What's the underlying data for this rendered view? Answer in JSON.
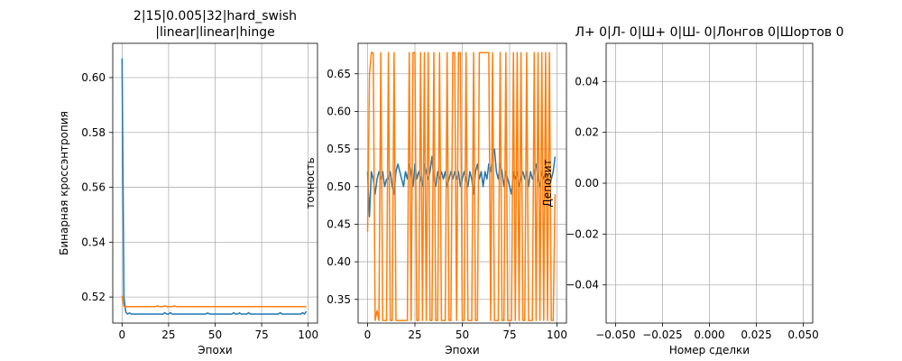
{
  "chart_data": [
    {
      "type": "line",
      "title": [
        "2|15|0.005|32|hard_swish",
        "|linear|linear|hinge"
      ],
      "xlabel": "Эпохи",
      "ylabel": "Бинарная кроссэнтропия",
      "xlim": [
        -5,
        105
      ],
      "ylim": [
        0.5105,
        0.6125
      ],
      "xticks": [
        0,
        25,
        50,
        75,
        100
      ],
      "yticks": [
        0.52,
        0.54,
        0.56,
        0.58,
        0.6
      ],
      "ytick_labels": [
        "0.52",
        "0.54",
        "0.56",
        "0.58",
        "0.60"
      ],
      "grid": true,
      "series": [
        {
          "color": "#1f77b4",
          "x": [
            0,
            1,
            2,
            3,
            4,
            5,
            6,
            7,
            8,
            9,
            10,
            11,
            12,
            13,
            14,
            15,
            16,
            17,
            18,
            19,
            20,
            21,
            22,
            23,
            24,
            25,
            26,
            27,
            28,
            29,
            30,
            31,
            32,
            33,
            34,
            35,
            36,
            37,
            38,
            39,
            40,
            41,
            42,
            43,
            44,
            45,
            46,
            47,
            48,
            49,
            50,
            51,
            52,
            53,
            54,
            55,
            56,
            57,
            58,
            59,
            60,
            61,
            62,
            63,
            64,
            65,
            66,
            67,
            68,
            69,
            70,
            71,
            72,
            73,
            74,
            75,
            76,
            77,
            78,
            79,
            80,
            81,
            82,
            83,
            84,
            85,
            86,
            87,
            88,
            89,
            90,
            91,
            92,
            93,
            94,
            95,
            96,
            97,
            98,
            99
          ],
          "y": [
            0.607,
            0.52,
            0.5145,
            0.5138,
            0.5142,
            0.5138,
            0.5138,
            0.5138,
            0.5138,
            0.5138,
            0.5138,
            0.5138,
            0.5138,
            0.5138,
            0.5138,
            0.5138,
            0.5138,
            0.5138,
            0.5138,
            0.5138,
            0.5138,
            0.5138,
            0.5138,
            0.5143,
            0.5138,
            0.5138,
            0.5143,
            0.5138,
            0.5138,
            0.5138,
            0.5138,
            0.5138,
            0.5138,
            0.5138,
            0.5138,
            0.5138,
            0.5138,
            0.5138,
            0.5138,
            0.5138,
            0.5138,
            0.5138,
            0.5138,
            0.5138,
            0.5138,
            0.5138,
            0.5142,
            0.5138,
            0.5138,
            0.5138,
            0.5138,
            0.5138,
            0.5138,
            0.5138,
            0.5138,
            0.5138,
            0.5138,
            0.5138,
            0.5138,
            0.5138,
            0.5143,
            0.5138,
            0.5138,
            0.5142,
            0.5138,
            0.5138,
            0.5138,
            0.5138,
            0.5143,
            0.5138,
            0.5138,
            0.5138,
            0.5138,
            0.5138,
            0.5138,
            0.5138,
            0.5138,
            0.5138,
            0.5138,
            0.5138,
            0.5138,
            0.5138,
            0.5138,
            0.5138,
            0.5138,
            0.5143,
            0.5138,
            0.5138,
            0.5138,
            0.5138,
            0.5138,
            0.5138,
            0.5138,
            0.5138,
            0.5138,
            0.5138,
            0.5138,
            0.5143,
            0.5138,
            0.5148
          ]
        },
        {
          "color": "#ff7f0e",
          "x": [
            0,
            1,
            2,
            3,
            4,
            5,
            6,
            7,
            8,
            9,
            10,
            11,
            12,
            13,
            14,
            15,
            16,
            17,
            18,
            19,
            20,
            21,
            22,
            23,
            24,
            25,
            26,
            27,
            28,
            29,
            30,
            31,
            32,
            33,
            34,
            35,
            36,
            37,
            38,
            39,
            40,
            41,
            42,
            43,
            44,
            45,
            46,
            47,
            48,
            49,
            50,
            51,
            52,
            53,
            54,
            55,
            56,
            57,
            58,
            59,
            60,
            61,
            62,
            63,
            64,
            65,
            66,
            67,
            68,
            69,
            70,
            71,
            72,
            73,
            74,
            75,
            76,
            77,
            78,
            79,
            80,
            81,
            82,
            83,
            84,
            85,
            86,
            87,
            88,
            89,
            90,
            91,
            92,
            93,
            94,
            95,
            96,
            97,
            98,
            99
          ],
          "y": [
            0.5205,
            0.5165,
            0.5165,
            0.5165,
            0.5165,
            0.5165,
            0.5165,
            0.5165,
            0.5165,
            0.5165,
            0.5165,
            0.5165,
            0.5165,
            0.5165,
            0.5165,
            0.5165,
            0.5165,
            0.5165,
            0.5165,
            0.5168,
            0.5165,
            0.5165,
            0.5165,
            0.5168,
            0.5165,
            0.5165,
            0.5165,
            0.5165,
            0.5168,
            0.5165,
            0.5165,
            0.5165,
            0.5165,
            0.5165,
            0.5165,
            0.5165,
            0.5165,
            0.5165,
            0.5165,
            0.5165,
            0.5165,
            0.5165,
            0.5165,
            0.5165,
            0.5165,
            0.5165,
            0.5165,
            0.5165,
            0.5165,
            0.5165,
            0.5165,
            0.5165,
            0.5165,
            0.5165,
            0.5165,
            0.5165,
            0.5165,
            0.5165,
            0.5165,
            0.5165,
            0.5165,
            0.5165,
            0.5165,
            0.5165,
            0.5165,
            0.5165,
            0.5165,
            0.5165,
            0.5165,
            0.5165,
            0.5165,
            0.5165,
            0.5165,
            0.5165,
            0.5165,
            0.5165,
            0.5165,
            0.5165,
            0.5165,
            0.5165,
            0.5165,
            0.5165,
            0.5165,
            0.5165,
            0.5165,
            0.5165,
            0.5165,
            0.5165,
            0.5165,
            0.5165,
            0.5165,
            0.5165,
            0.5165,
            0.5165,
            0.5165,
            0.5165,
            0.5165,
            0.5165,
            0.5165,
            0.5165
          ]
        }
      ]
    },
    {
      "type": "line",
      "title": [],
      "xlabel": "Эпохи",
      "ylabel": "точность",
      "xlim": [
        -5,
        105
      ],
      "ylim": [
        0.3185,
        0.6905
      ],
      "xticks": [
        0,
        25,
        50,
        75,
        100
      ],
      "yticks": [
        0.35,
        0.4,
        0.45,
        0.5,
        0.55,
        0.6,
        0.65
      ],
      "ytick_labels": [
        "0.35",
        "0.40",
        "0.45",
        "0.50",
        "0.55",
        "0.60",
        "0.65"
      ],
      "grid": true,
      "series": [
        {
          "color": "#1f77b4",
          "x": [
            0,
            1,
            2,
            3,
            4,
            5,
            6,
            7,
            8,
            9,
            10,
            11,
            12,
            13,
            14,
            15,
            16,
            17,
            18,
            19,
            20,
            21,
            22,
            23,
            24,
            25,
            26,
            27,
            28,
            29,
            30,
            31,
            32,
            33,
            34,
            35,
            36,
            37,
            38,
            39,
            40,
            41,
            42,
            43,
            44,
            45,
            46,
            47,
            48,
            49,
            50,
            51,
            52,
            53,
            54,
            55,
            56,
            57,
            58,
            59,
            60,
            61,
            62,
            63,
            64,
            65,
            66,
            67,
            68,
            69,
            70,
            71,
            72,
            73,
            74,
            75,
            76,
            77,
            78,
            79,
            80,
            81,
            82,
            83,
            84,
            85,
            86,
            87,
            88,
            89,
            90,
            91,
            92,
            93,
            94,
            95,
            96,
            97,
            98,
            99
          ],
          "y": [
            0.52,
            0.46,
            0.52,
            0.51,
            0.49,
            0.51,
            0.52,
            0.51,
            0.52,
            0.5,
            0.51,
            0.51,
            0.52,
            0.5,
            0.49,
            0.52,
            0.53,
            0.52,
            0.51,
            0.5,
            0.52,
            0.51,
            0.53,
            0.52,
            0.5,
            0.53,
            0.51,
            0.52,
            0.51,
            0.5,
            0.53,
            0.52,
            0.51,
            0.52,
            0.54,
            0.51,
            0.5,
            0.52,
            0.51,
            0.52,
            0.51,
            0.52,
            0.5,
            0.51,
            0.52,
            0.51,
            0.52,
            0.51,
            0.52,
            0.5,
            0.51,
            0.52,
            0.51,
            0.5,
            0.52,
            0.51,
            0.49,
            0.52,
            0.53,
            0.51,
            0.52,
            0.5,
            0.52,
            0.51,
            0.53,
            0.52,
            0.54,
            0.55,
            0.52,
            0.51,
            0.53,
            0.52,
            0.5,
            0.52,
            0.51,
            0.5,
            0.49,
            0.52,
            0.51,
            0.52,
            0.5,
            0.51,
            0.52,
            0.51,
            0.52,
            0.5,
            0.52,
            0.51,
            0.52,
            0.53,
            0.51,
            0.5,
            0.52,
            0.51,
            0.52,
            0.51,
            0.5,
            0.51,
            0.52,
            0.54
          ]
        },
        {
          "color": "#ff7f0e",
          "x": [
            0,
            1,
            2,
            3,
            4,
            5,
            6,
            7,
            8,
            9,
            10,
            11,
            12,
            13,
            14,
            15,
            16,
            17,
            18,
            19,
            20,
            21,
            22,
            23,
            24,
            25,
            26,
            27,
            28,
            29,
            30,
            31,
            32,
            33,
            34,
            35,
            36,
            37,
            38,
            39,
            40,
            41,
            42,
            43,
            44,
            45,
            46,
            47,
            48,
            49,
            50,
            51,
            52,
            53,
            54,
            55,
            56,
            57,
            58,
            59,
            60,
            61,
            62,
            63,
            64,
            65,
            66,
            67,
            68,
            69,
            70,
            71,
            72,
            73,
            74,
            75,
            76,
            77,
            78,
            79,
            80,
            81,
            82,
            83,
            84,
            85,
            86,
            87,
            88,
            89,
            90,
            91,
            92,
            93,
            94,
            95,
            96,
            97,
            98,
            99
          ],
          "y": [
            0.44,
            0.65,
            0.678,
            0.678,
            0.322,
            0.335,
            0.322,
            0.678,
            0.322,
            0.322,
            0.322,
            0.678,
            0.322,
            0.322,
            0.678,
            0.322,
            0.322,
            0.322,
            0.322,
            0.322,
            0.322,
            0.322,
            0.678,
            0.322,
            0.678,
            0.678,
            0.322,
            0.322,
            0.678,
            0.322,
            0.678,
            0.322,
            0.678,
            0.322,
            0.322,
            0.678,
            0.322,
            0.322,
            0.678,
            0.322,
            0.322,
            0.322,
            0.678,
            0.322,
            0.322,
            0.678,
            0.678,
            0.322,
            0.678,
            0.678,
            0.322,
            0.322,
            0.678,
            0.322,
            0.322,
            0.322,
            0.678,
            0.322,
            0.322,
            0.678,
            0.678,
            0.678,
            0.678,
            0.678,
            0.678,
            0.322,
            0.678,
            0.322,
            0.322,
            0.322,
            0.678,
            0.322,
            0.322,
            0.678,
            0.322,
            0.322,
            0.322,
            0.678,
            0.322,
            0.678,
            0.322,
            0.678,
            0.322,
            0.322,
            0.678,
            0.322,
            0.322,
            0.322,
            0.678,
            0.322,
            0.678,
            0.322,
            0.678,
            0.322,
            0.678,
            0.322,
            0.678,
            0.322,
            0.322,
            0.49
          ]
        }
      ]
    },
    {
      "type": "line",
      "title": [
        "Л+ 0|Л- 0|Ш+ 0|Ш- 0|Лонгов 0|Шортов 0"
      ],
      "xlabel": "Номер сделки",
      "ylabel": "Депозит",
      "xlim": [
        -0.055,
        0.055
      ],
      "ylim": [
        -0.055,
        0.055
      ],
      "xticks": [
        -0.05,
        -0.025,
        0.0,
        0.025,
        0.05
      ],
      "xtick_labels": [
        "−0.050",
        "−0.025",
        "0.000",
        "0.025",
        "0.050"
      ],
      "yticks": [
        -0.04,
        -0.02,
        0.0,
        0.02,
        0.04
      ],
      "ytick_labels": [
        "−0.04",
        "−0.02",
        "0.00",
        "0.02",
        "0.04"
      ],
      "grid": true,
      "series": []
    }
  ]
}
